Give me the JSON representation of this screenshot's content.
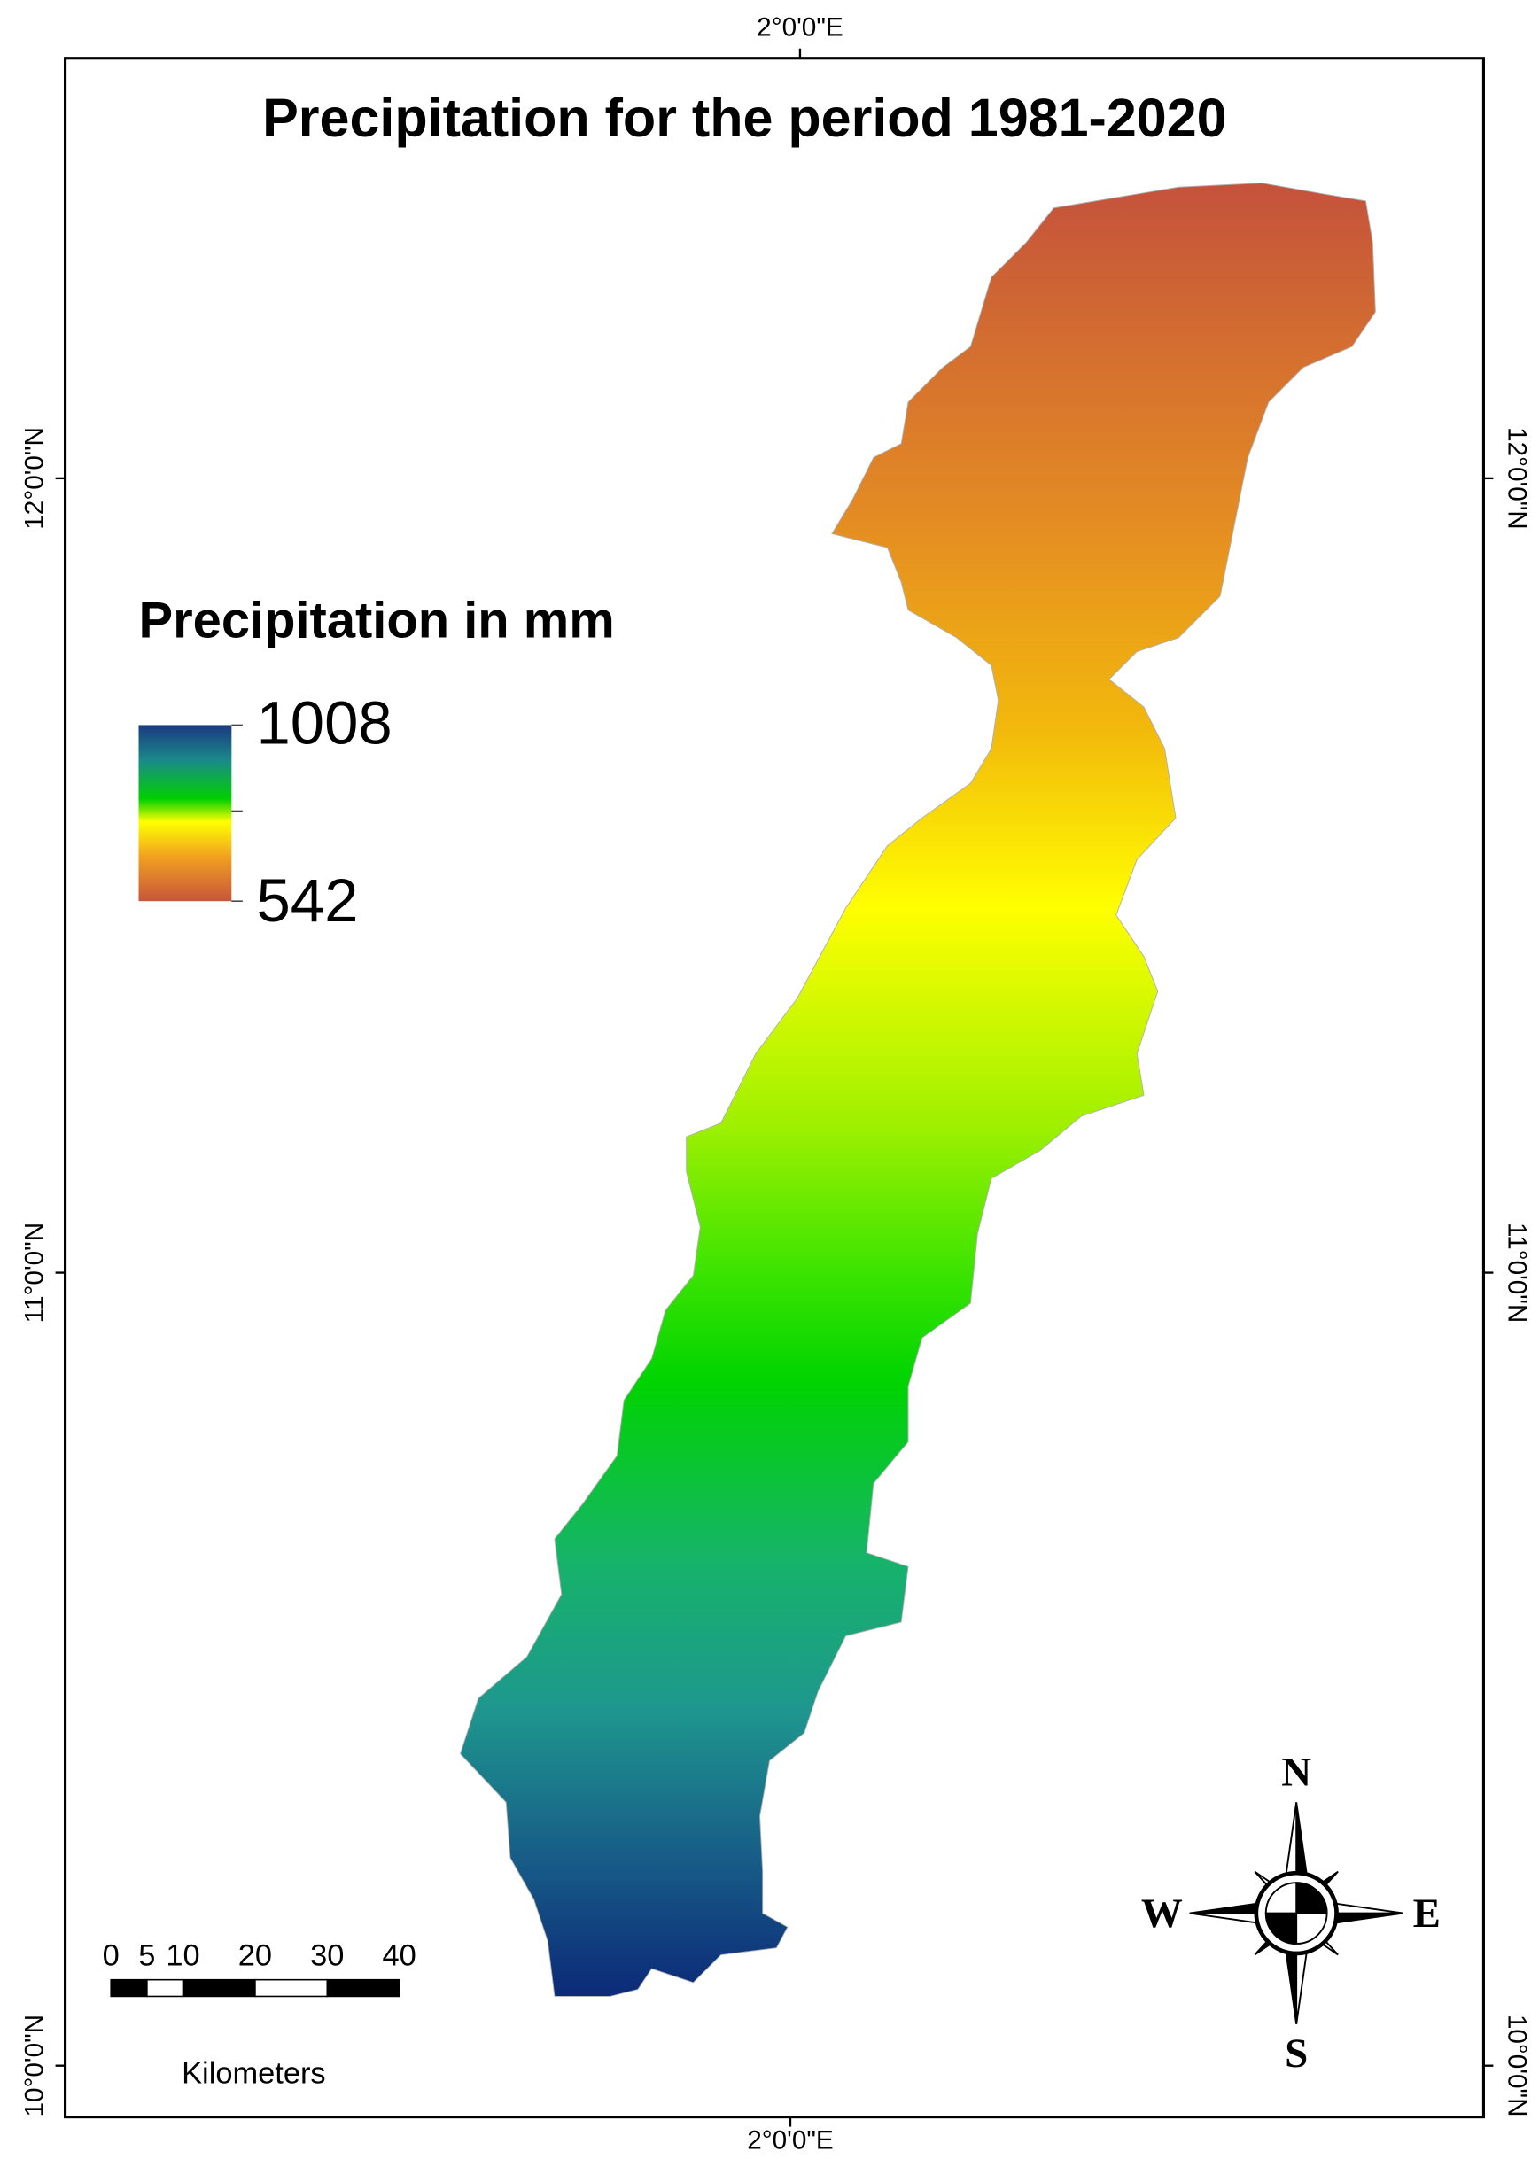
{
  "title": "Precipitation for the period 1981-2020",
  "legend": {
    "title": "Precipitation in mm",
    "max": 1008,
    "min": 542
  },
  "graticule": {
    "top": [
      "2°0'0\"E"
    ],
    "bottom": [
      "2°0'0\"E"
    ],
    "left": [
      "12°0'0\"N",
      "11°0'0\"N",
      "10°0'0\"N"
    ],
    "right": [
      "12°0'0\"N",
      "11°0'0\"N",
      "10°0'0\"N"
    ]
  },
  "scale_bar": {
    "ticks": [
      0,
      5,
      10,
      20,
      30,
      40
    ],
    "unit": "Kilometers"
  },
  "compass": {
    "north": "N",
    "south": "S",
    "east": "E",
    "west": "W"
  }
}
